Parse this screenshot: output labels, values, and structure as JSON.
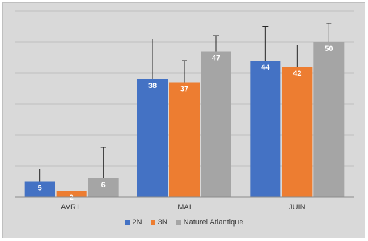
{
  "chart_data": {
    "type": "bar",
    "categories": [
      "AVRIL",
      "MAI",
      "JUIN"
    ],
    "series": [
      {
        "name": "2N",
        "values": [
          5,
          38,
          44
        ],
        "error": [
          4,
          13,
          11
        ],
        "color": "#4472c4"
      },
      {
        "name": "3N",
        "values": [
          2,
          37,
          42
        ],
        "error": [
          0,
          7,
          7
        ],
        "color": "#ed7d31"
      },
      {
        "name": "Naturel Atlantique",
        "values": [
          6,
          47,
          50
        ],
        "error": [
          10,
          5,
          6
        ],
        "color": "#a5a5a5"
      }
    ],
    "ylim": [
      0,
      60
    ],
    "gridlines": true,
    "legend": "bottom",
    "title": "",
    "xlabel": "",
    "ylabel": ""
  }
}
